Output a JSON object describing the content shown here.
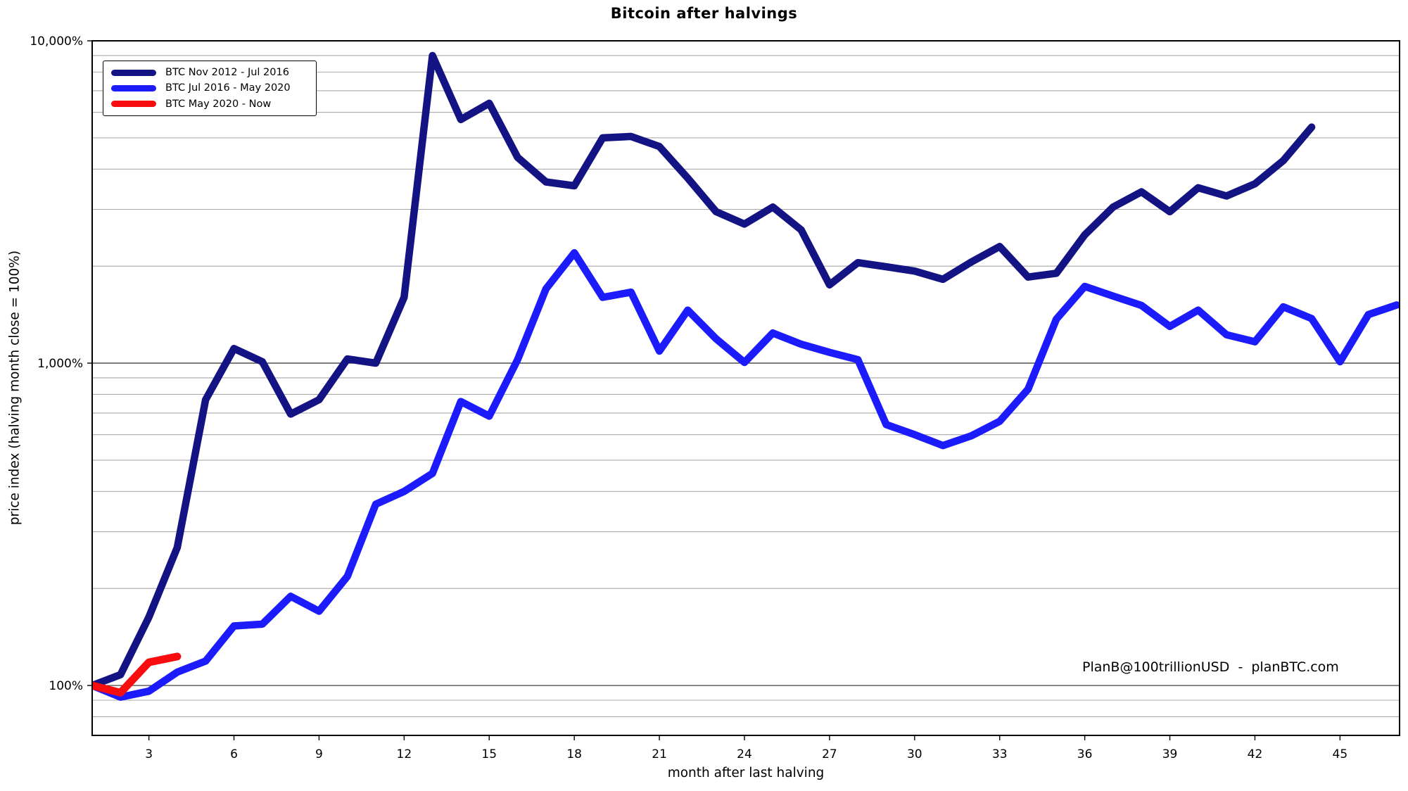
{
  "chart_data": {
    "type": "line",
    "title": "Bitcoin after halvings",
    "xlabel": "month after last halving",
    "ylabel": "price index (halving month close = 100%)",
    "annotation": "PlanB@100trillionUSD  -  planBTC.com",
    "x_scale": "linear",
    "y_scale": "log",
    "xlim": [
      1,
      47.1
    ],
    "ylim": [
      70,
      10000
    ],
    "x_ticks": [
      3,
      6,
      9,
      12,
      15,
      18,
      21,
      24,
      27,
      30,
      33,
      36,
      39,
      42,
      45
    ],
    "y_ticks": [
      {
        "value": 100,
        "label": "100%"
      },
      {
        "value": 1000,
        "label": "1,000%"
      },
      {
        "value": 10000,
        "label": "10,000%"
      }
    ],
    "grid": {
      "show": true,
      "minor_color": "#a9a9a9",
      "major_color": "#2f2f2f"
    },
    "legend_position": "upper-left",
    "background": "#ffffff",
    "series": [
      {
        "name": "BTC Nov 2012 - Jul 2016",
        "color": "#131383",
        "linewidth": 10.5,
        "months": [
          1,
          2,
          3,
          4,
          5,
          6,
          7,
          8,
          9,
          10,
          11,
          12,
          13,
          14,
          15,
          16,
          17,
          18,
          19,
          20,
          21,
          22,
          23,
          24,
          25,
          26,
          27,
          28,
          29,
          30,
          31,
          32,
          33,
          34,
          35,
          36,
          37,
          38,
          39,
          40,
          41,
          42,
          43,
          44
        ],
        "values": [
          100,
          108,
          163,
          268,
          770,
          1110,
          1010,
          695,
          770,
          1030,
          1000,
          1600,
          9000,
          5700,
          6400,
          4350,
          3650,
          3550,
          5000,
          5050,
          4700,
          3750,
          2950,
          2700,
          3050,
          2590,
          1750,
          2050,
          1990,
          1930,
          1820,
          2060,
          2300,
          1850,
          1900,
          2500,
          3050,
          3400,
          2950,
          3500,
          3300,
          3600,
          4250,
          5400
        ]
      },
      {
        "name": "BTC Jul 2016 - May 2020",
        "color": "#1b1bfc",
        "linewidth": 10.5,
        "months": [
          1,
          2,
          3,
          4,
          5,
          6,
          7,
          8,
          9,
          10,
          11,
          12,
          13,
          14,
          15,
          16,
          17,
          18,
          19,
          20,
          21,
          22,
          23,
          24,
          25,
          26,
          27,
          28,
          29,
          30,
          31,
          32,
          33,
          34,
          35,
          36,
          37,
          38,
          39,
          40,
          41,
          42,
          43,
          44,
          45,
          46,
          47
        ],
        "values": [
          100,
          92,
          96,
          110,
          119,
          153,
          155,
          189,
          170,
          218,
          365,
          400,
          455,
          760,
          685,
          1025,
          1700,
          2200,
          1600,
          1660,
          1090,
          1460,
          1190,
          1005,
          1240,
          1145,
          1080,
          1025,
          645,
          600,
          555,
          595,
          660,
          830,
          1370,
          1730,
          1615,
          1510,
          1300,
          1460,
          1225,
          1165,
          1495,
          1375,
          1010,
          1415,
          1515
        ]
      },
      {
        "name": "BTC May 2020 - Now",
        "color": "#f70d0d",
        "linewidth": 11,
        "months": [
          1,
          2,
          3,
          4
        ],
        "values": [
          100,
          95,
          118,
          123
        ]
      }
    ]
  }
}
